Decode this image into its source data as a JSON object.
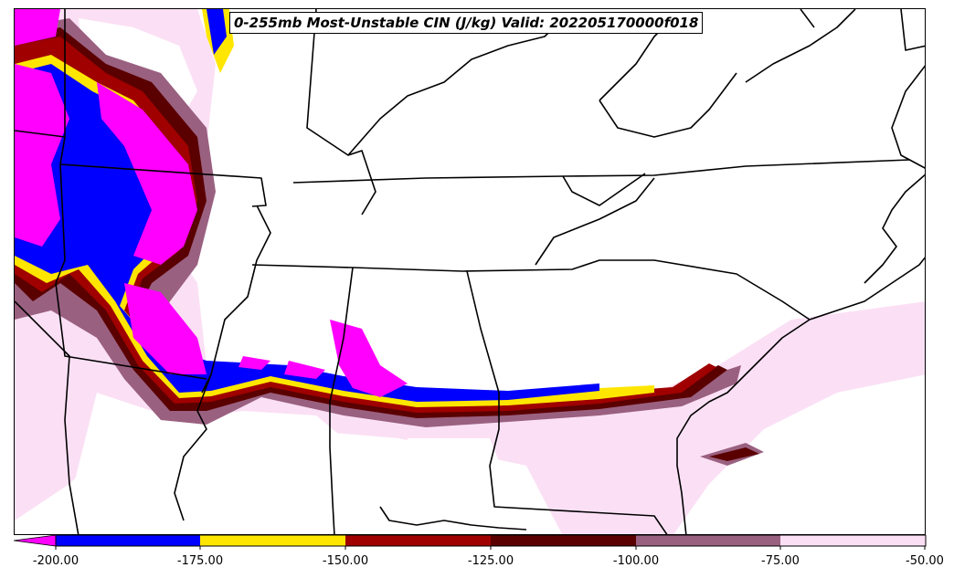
{
  "map": {
    "title": "0-255mb Most-Unstable CIN (J/kg) Valid: 202205170000f018",
    "variable": "Most-Unstable CIN",
    "units": "J/kg"
  },
  "colorbar": {
    "ticks": [
      "-200.00",
      "-175.00",
      "-150.00",
      "-125.00",
      "-100.00",
      "-75.00",
      "-50.00"
    ],
    "bins": [
      {
        "range": "< -200",
        "color": "#ff00ff"
      },
      {
        "range": "-200 to -175",
        "color": "#0000ff"
      },
      {
        "range": "-175 to -150",
        "color": "#ffe600"
      },
      {
        "range": "-150 to -125",
        "color": "#a00000"
      },
      {
        "range": "-125 to -100",
        "color": "#5a0000"
      },
      {
        "range": "-100 to -75",
        "color": "#9a6080"
      },
      {
        "range": "-75 to -50",
        "color": "#fbe0f5"
      }
    ]
  }
}
